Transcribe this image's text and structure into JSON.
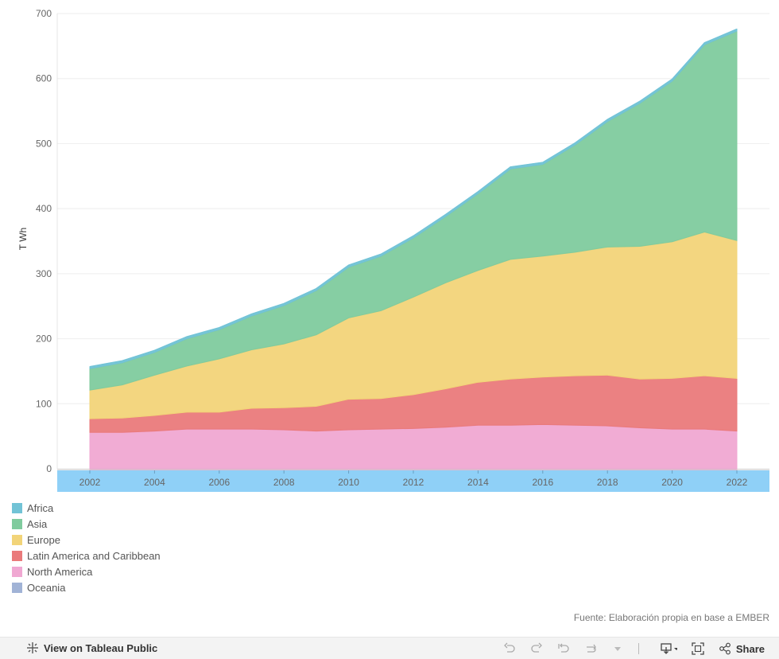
{
  "chart_data": {
    "type": "area",
    "stacked": true,
    "ylabel": "T Wh",
    "ylim": [
      0,
      700
    ],
    "yticks": [
      0,
      100,
      200,
      300,
      400,
      500,
      600,
      700
    ],
    "xticks": [
      2002,
      2004,
      2006,
      2008,
      2010,
      2012,
      2014,
      2016,
      2018,
      2020,
      2022
    ],
    "x": [
      2002,
      2003,
      2004,
      2005,
      2006,
      2007,
      2008,
      2009,
      2010,
      2011,
      2012,
      2013,
      2014,
      2015,
      2016,
      2017,
      2018,
      2019,
      2020,
      2021,
      2022
    ],
    "grid": true,
    "legend_position": "bottom-left",
    "series": [
      {
        "name": "Oceania",
        "color": "#a1b3d6",
        "values": [
          -8,
          -8,
          -7,
          -6,
          -6,
          -6,
          -6,
          -7,
          -7,
          -7,
          -7,
          -7,
          -6,
          -6,
          -6,
          -6,
          -6,
          -6,
          -6,
          -6,
          -7
        ]
      },
      {
        "name": "North America",
        "color": "#f0a8d2",
        "values": [
          64,
          64,
          65,
          67,
          67,
          67,
          66,
          65,
          67,
          68,
          69,
          71,
          73,
          73,
          74,
          73,
          72,
          69,
          67,
          67,
          65
        ]
      },
      {
        "name": "Latin America and Caribbean",
        "color": "#ea7a7b",
        "values": [
          21,
          22,
          24,
          26,
          26,
          32,
          34,
          38,
          47,
          47,
          52,
          59,
          66,
          71,
          73,
          76,
          78,
          75,
          78,
          82,
          81
        ]
      },
      {
        "name": "Europe",
        "color": "#f2d479",
        "values": [
          44,
          51,
          62,
          71,
          82,
          90,
          98,
          110,
          125,
          135,
          150,
          163,
          172,
          184,
          186,
          190,
          197,
          204,
          210,
          221,
          212
        ]
      },
      {
        "name": "Asia",
        "color": "#80cb9e",
        "values": [
          33,
          34,
          35,
          42,
          45,
          52,
          59,
          68,
          78,
          84,
          91,
          102,
          118,
          139,
          141,
          165,
          193,
          220,
          247,
          288,
          322
        ]
      },
      {
        "name": "Africa",
        "color": "#72c3d6",
        "values": [
          3,
          3,
          3,
          3,
          3,
          3,
          3,
          3,
          3,
          3,
          3,
          3,
          3,
          3,
          3,
          3,
          3,
          3,
          3,
          3,
          3
        ]
      }
    ],
    "legend_order": [
      "Africa",
      "Asia",
      "Europe",
      "Latin America and Caribbean",
      "North America",
      "Oceania"
    ],
    "x_axis_band_color": "#8fd0f7"
  },
  "source_note": "Fuente: Elaboración propia en base a EMBER",
  "toolbar": {
    "view_label": "View on Tableau Public",
    "share_label": "Share",
    "icons": [
      "tableau-logo-icon",
      "undo-icon",
      "redo-icon",
      "revert-icon",
      "refresh-icon",
      "pause-dropdown-icon",
      "download-icon",
      "fullscreen-icon",
      "share-icon"
    ]
  }
}
